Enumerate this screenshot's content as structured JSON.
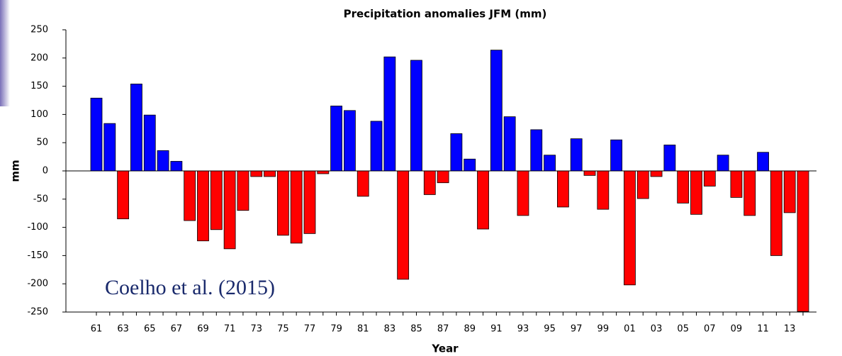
{
  "chart_data": {
    "type": "bar",
    "title": "Precipitation anomalies JFM (mm)",
    "x_label": "Year",
    "y_label": "mm",
    "annotation": "Coelho et al. (2015)",
    "categories": [
      "61",
      null,
      "63",
      null,
      "65",
      null,
      "67",
      null,
      "69",
      null,
      "71",
      null,
      "73",
      null,
      "75",
      null,
      "77",
      null,
      "79",
      null,
      "81",
      null,
      "83",
      null,
      "85",
      null,
      "87",
      null,
      "89",
      null,
      "91",
      null,
      "93",
      null,
      "95",
      null,
      "97",
      null,
      "99",
      null,
      "01",
      null,
      "03",
      null,
      "05",
      null,
      "07",
      null,
      "09",
      null,
      "11",
      null,
      "13",
      null
    ],
    "values": [
      129,
      84,
      -85,
      154,
      99,
      36,
      17,
      -88,
      -124,
      -104,
      -138,
      -70,
      -10,
      -10,
      -114,
      -128,
      -111,
      -5,
      115,
      107,
      -45,
      88,
      202,
      -192,
      196,
      -42,
      -21,
      66,
      21,
      -103,
      214,
      96,
      -79,
      73,
      28,
      -64,
      57,
      -8,
      -68,
      55,
      -202,
      -49,
      -10,
      46,
      -57,
      -77,
      -27,
      28,
      -47,
      -79,
      33,
      -150,
      -74,
      -249
    ],
    "positive_color": "#0000ff",
    "negative_color": "#ff0000",
    "ylim": [
      -250,
      250
    ],
    "yticks": [
      -250,
      -200,
      -150,
      -100,
      -50,
      0,
      50,
      100,
      150,
      200,
      250
    ],
    "grid": false
  }
}
